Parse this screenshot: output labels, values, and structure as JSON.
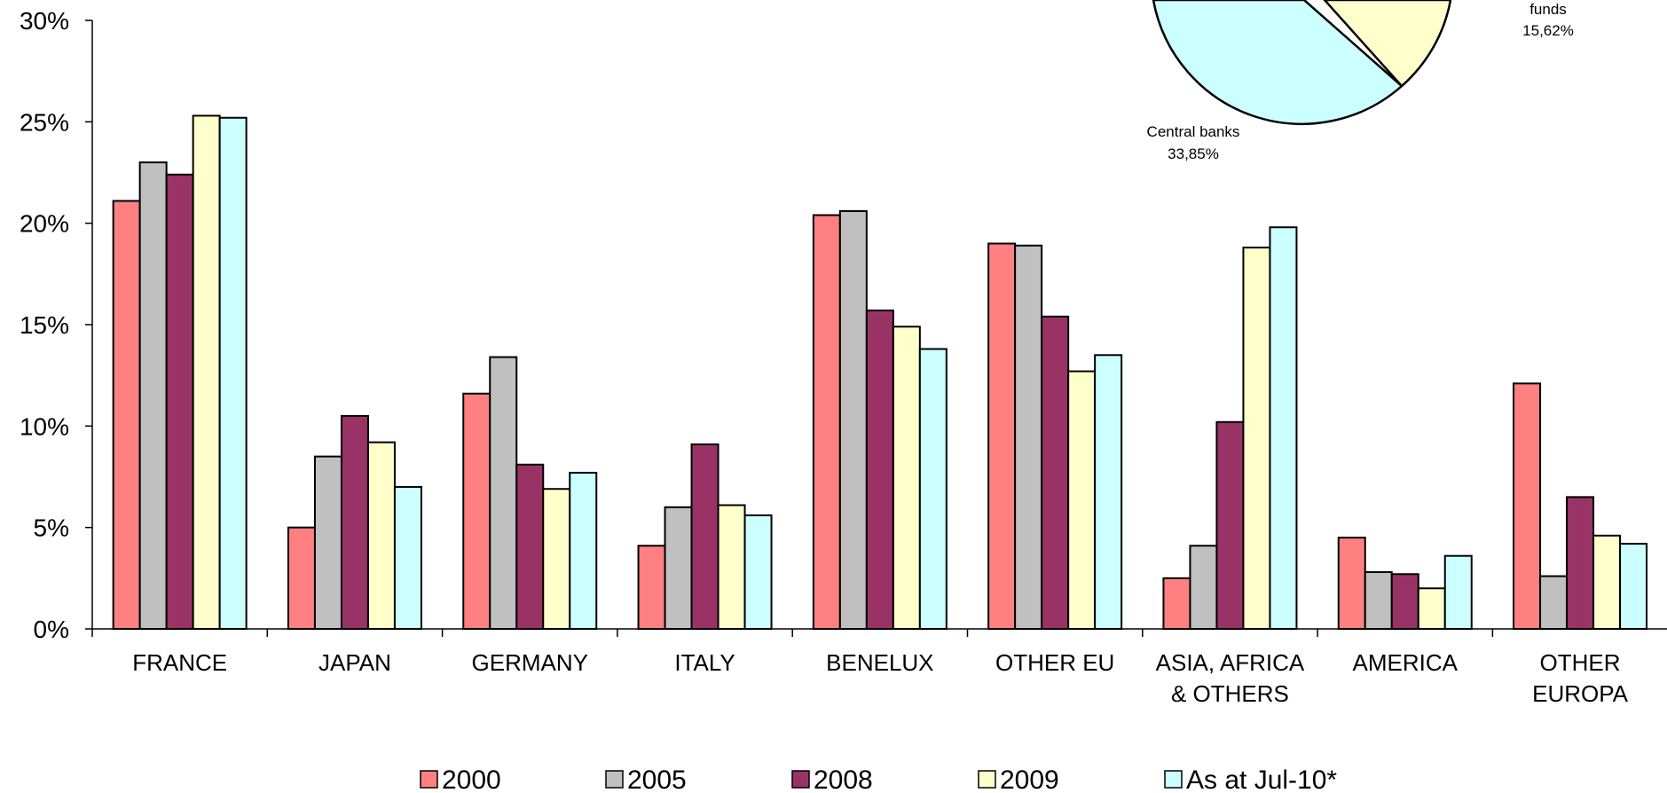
{
  "chart_data": [
    {
      "type": "bar",
      "categories": [
        [
          "FRANCE"
        ],
        [
          "JAPAN"
        ],
        [
          "GERMANY"
        ],
        [
          "ITALY"
        ],
        [
          "BENELUX"
        ],
        [
          "OTHER EU"
        ],
        [
          "ASIA, AFRICA",
          "& OTHERS"
        ],
        [
          "AMERICA"
        ],
        [
          "OTHER",
          "EUROPA"
        ]
      ],
      "series": [
        {
          "name": "2000",
          "color": "#FF8080",
          "values": [
            21.1,
            5.0,
            11.6,
            4.1,
            20.4,
            19.0,
            2.5,
            4.5,
            12.1
          ]
        },
        {
          "name": "2005",
          "color": "#C0C0C0",
          "values": [
            23.0,
            8.5,
            13.4,
            6.0,
            20.6,
            18.9,
            4.1,
            2.8,
            2.6
          ]
        },
        {
          "name": "2008",
          "color": "#993366",
          "values": [
            22.4,
            10.5,
            8.1,
            9.1,
            15.7,
            15.4,
            10.2,
            2.7,
            6.5
          ]
        },
        {
          "name": "2009",
          "color": "#FFFFCC",
          "values": [
            25.3,
            9.2,
            6.9,
            6.1,
            14.9,
            12.7,
            18.8,
            2.0,
            4.6
          ]
        },
        {
          "name": "As at Jul-10*",
          "color": "#CCFFFF",
          "values": [
            25.2,
            7.0,
            7.7,
            5.6,
            13.8,
            13.5,
            19.8,
            3.6,
            4.2
          ]
        }
      ],
      "yticks": [
        "0%",
        "5%",
        "10%",
        "15%",
        "20%",
        "25%",
        "30%"
      ],
      "ylim": [
        0,
        30
      ],
      "legend_position": "bottom"
    },
    {
      "type": "pie",
      "visible_slices": [
        {
          "label": "Central banks",
          "value": 33.85,
          "display": "33,85%",
          "color": "#CCFFFF"
        },
        {
          "label": "funds",
          "value": 15.62,
          "display": "15,62%",
          "color": "#FFFFCC"
        }
      ]
    }
  ]
}
